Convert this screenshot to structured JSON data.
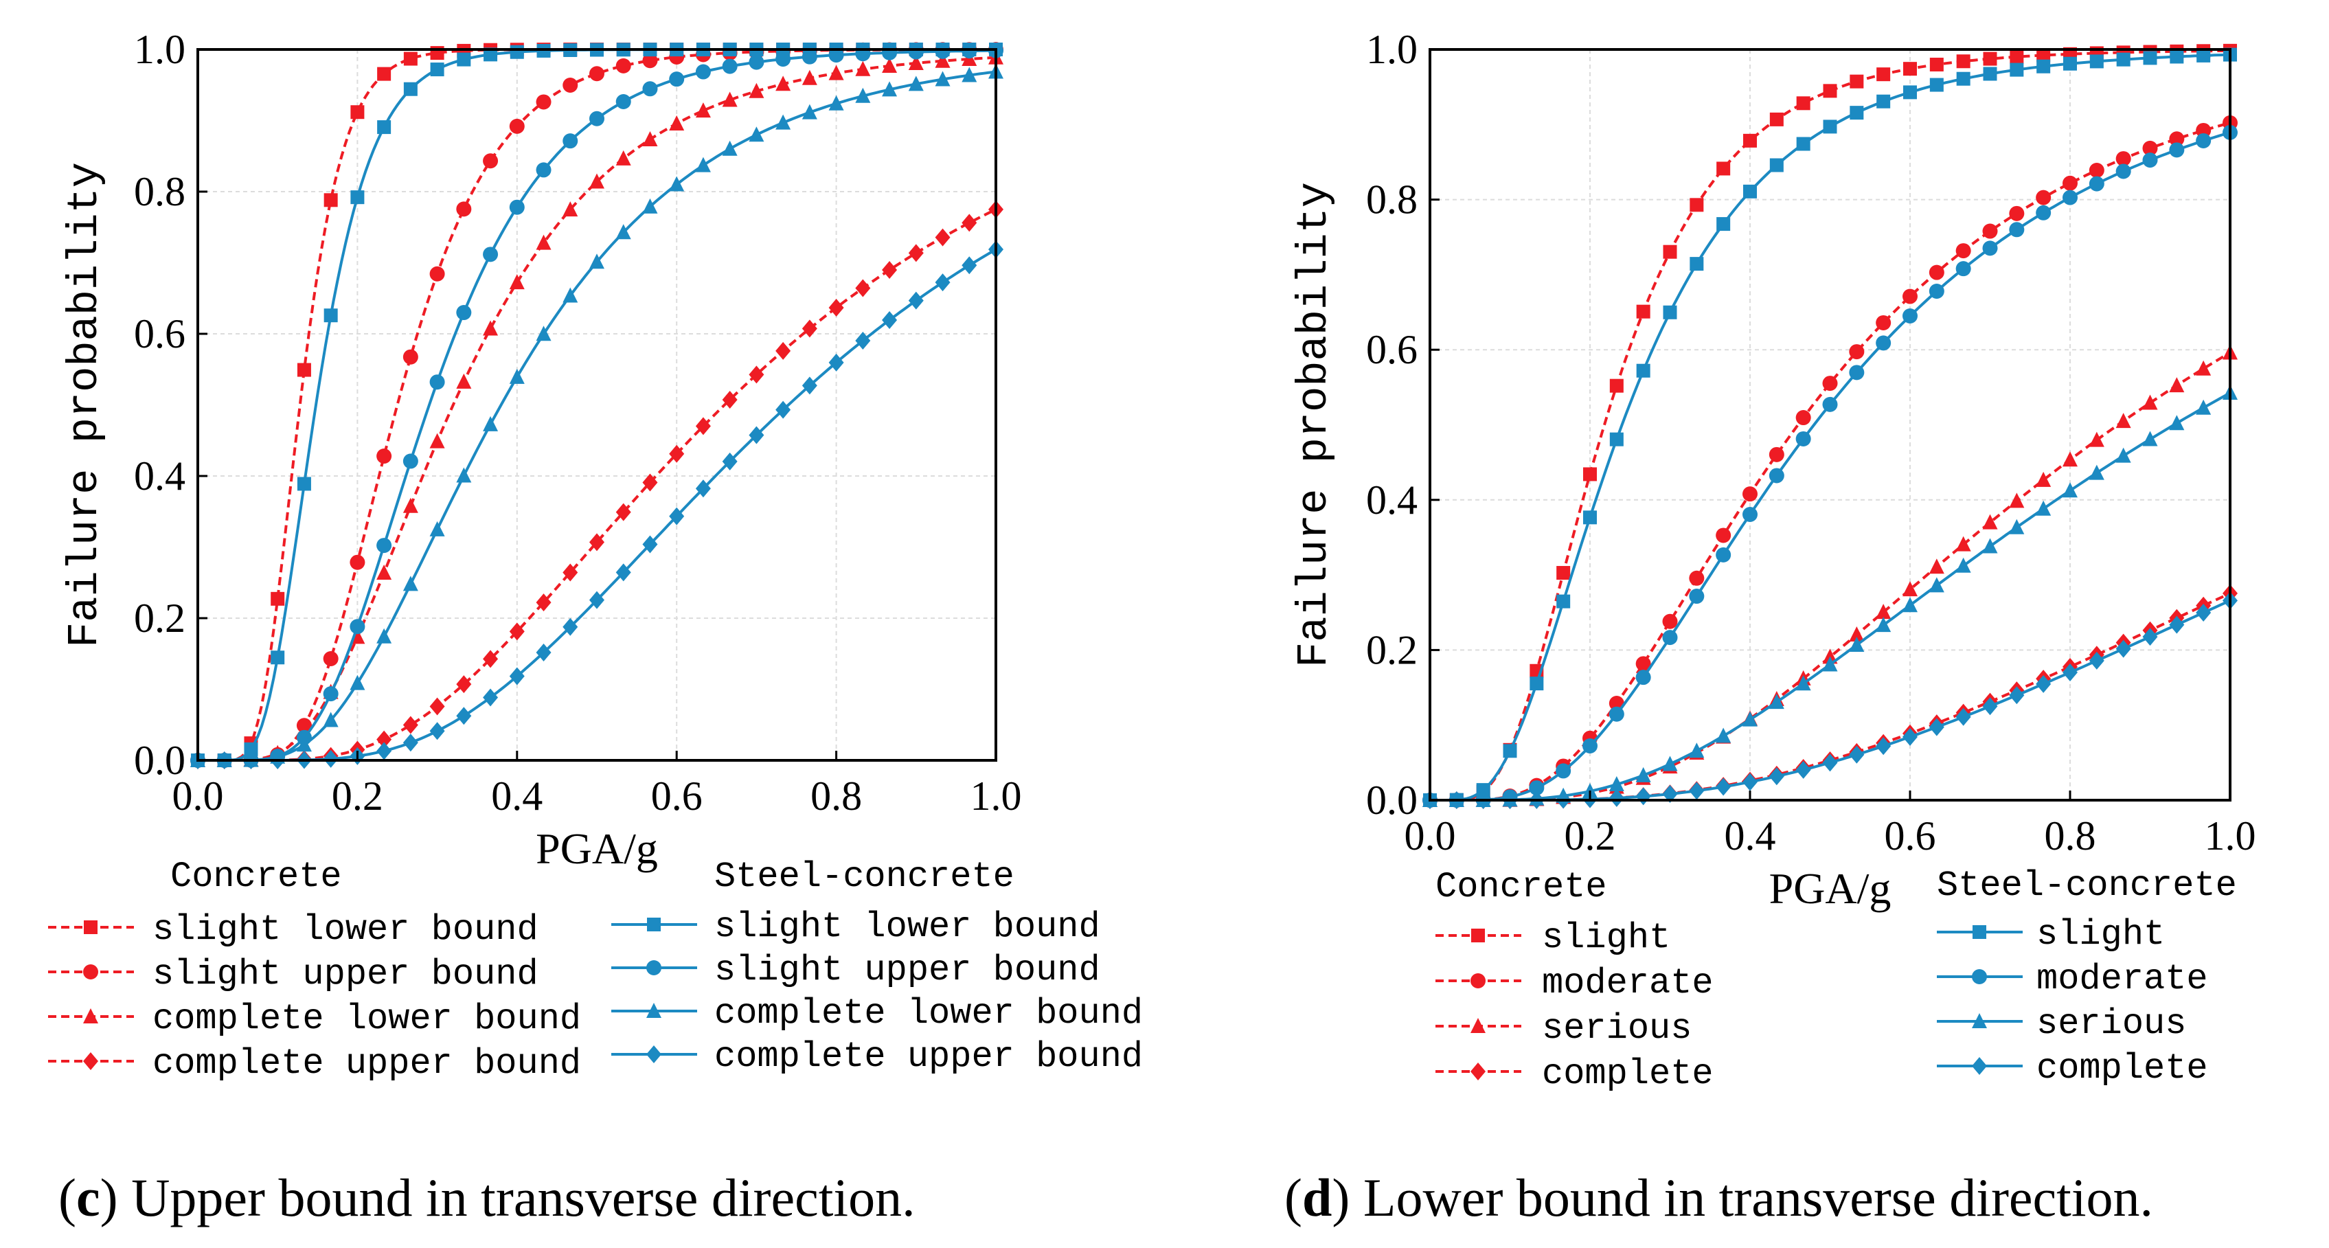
{
  "colors": {
    "concrete": "#ee1c24",
    "steel": "#1c8ac2",
    "grid": "#dcdcdc",
    "axis": "#000000"
  },
  "chart_data": [
    {
      "type": "line",
      "caption_letter": "c",
      "caption_text": ") Upper bound in transverse direction.",
      "xlabel": "PGA/g",
      "ylabel": "Failure probability",
      "xlim": [
        0,
        1
      ],
      "ylim": [
        0,
        1
      ],
      "xticks": [
        "0.0",
        "0.2",
        "0.4",
        "0.6",
        "0.8",
        "1.0"
      ],
      "yticks": [
        "0.0",
        "0.2",
        "0.4",
        "0.6",
        "0.8",
        "1.0"
      ],
      "grid": true,
      "legend_group_concrete": "Concrete",
      "legend_group_steel": "Steel-concrete",
      "series": [
        {
          "name": "slight lower bound",
          "group": "concrete",
          "marker": "square",
          "median": 0.128,
          "beta": 0.33
        },
        {
          "name": "slight upper bound",
          "group": "concrete",
          "marker": "circle",
          "median": 0.25,
          "beta": 0.38
        },
        {
          "name": "complete lower bound",
          "group": "concrete",
          "marker": "triangle",
          "median": 0.32,
          "beta": 0.5
        },
        {
          "name": "complete upper bound",
          "group": "concrete",
          "marker": "diamond",
          "median": 0.66,
          "beta": 0.55
        },
        {
          "name": "slight lower bound",
          "group": "steel",
          "marker": "square",
          "median": 0.148,
          "beta": 0.37
        },
        {
          "name": "slight upper bound",
          "group": "steel",
          "marker": "circle",
          "median": 0.29,
          "beta": 0.42
        },
        {
          "name": "complete lower bound",
          "group": "steel",
          "marker": "triangle",
          "median": 0.38,
          "beta": 0.52
        },
        {
          "name": "complete upper bound",
          "group": "steel",
          "marker": "diamond",
          "median": 0.74,
          "beta": 0.52
        }
      ]
    },
    {
      "type": "line",
      "caption_letter": "d",
      "caption_text": ") Lower bound in transverse direction.",
      "xlabel": "PGA/g",
      "ylabel": "Failure probability",
      "xlim": [
        0,
        1
      ],
      "ylim": [
        0,
        1
      ],
      "xticks": [
        "0.0",
        "0.2",
        "0.4",
        "0.6",
        "0.8",
        "1.0"
      ],
      "yticks": [
        "0.0",
        "0.2",
        "0.4",
        "0.6",
        "0.8",
        "1.0"
      ],
      "grid": true,
      "legend_group_concrete": "Concrete",
      "legend_group_steel": "Steel-concrete",
      "series": [
        {
          "name": "slight",
          "group": "concrete",
          "marker": "square",
          "median": 0.218,
          "beta": 0.52
        },
        {
          "name": "moderate",
          "group": "concrete",
          "marker": "circle",
          "median": 0.46,
          "beta": 0.6
        },
        {
          "name": "serious",
          "group": "concrete",
          "marker": "triangle",
          "median": 0.86,
          "beta": 0.62
        },
        {
          "name": "complete",
          "group": "concrete",
          "marker": "diamond",
          "median": 1.5,
          "beta": 0.68
        },
        {
          "name": "slight",
          "group": "steel",
          "marker": "square",
          "median": 0.24,
          "beta": 0.58
        },
        {
          "name": "moderate",
          "group": "steel",
          "marker": "circle",
          "median": 0.48,
          "beta": 0.6
        },
        {
          "name": "serious",
          "group": "steel",
          "marker": "triangle",
          "median": 0.93,
          "beta": 0.68
        },
        {
          "name": "complete",
          "group": "steel",
          "marker": "diamond",
          "median": 1.53,
          "beta": 0.68
        }
      ]
    }
  ]
}
